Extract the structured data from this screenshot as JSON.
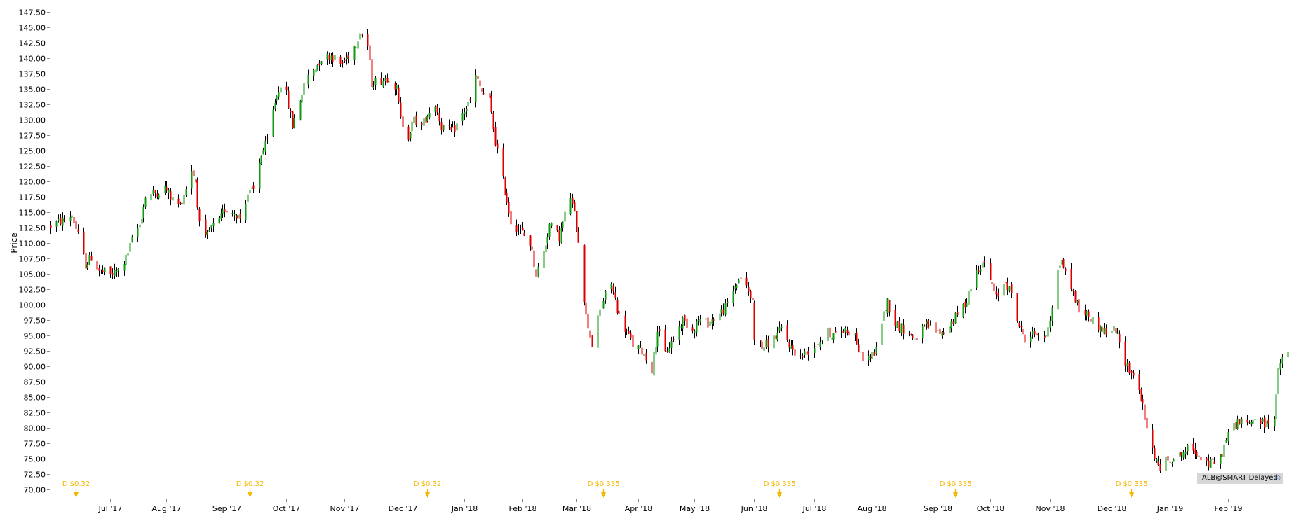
{
  "chart_data": {
    "type": "candlestick",
    "ylabel": "Price",
    "ylim": [
      68.5,
      149
    ],
    "yticks": [
      70,
      72.5,
      75,
      77.5,
      80,
      82.5,
      85,
      87.5,
      90,
      92.5,
      95,
      97.5,
      100,
      102.5,
      105,
      107.5,
      110,
      112.5,
      115,
      117.5,
      120,
      122.5,
      125,
      127.5,
      130,
      132.5,
      135,
      137.5,
      140,
      142.5,
      145,
      147.5
    ],
    "xlim": [
      "2017-06-02",
      "2019-03-04"
    ],
    "xticks": [
      {
        "date": "2017-07-03",
        "label": "Jul '17"
      },
      {
        "date": "2017-08-01",
        "label": "Aug '17"
      },
      {
        "date": "2017-09-01",
        "label": "Sep '17"
      },
      {
        "date": "2017-10-02",
        "label": "Oct '17"
      },
      {
        "date": "2017-11-01",
        "label": "Nov '17"
      },
      {
        "date": "2017-12-01",
        "label": "Dec '17"
      },
      {
        "date": "2018-01-02",
        "label": "Jan '18"
      },
      {
        "date": "2018-02-01",
        "label": "Feb '18"
      },
      {
        "date": "2018-03-01",
        "label": "Mar '18"
      },
      {
        "date": "2018-04-02",
        "label": "Apr '18"
      },
      {
        "date": "2018-05-01",
        "label": "May '18"
      },
      {
        "date": "2018-06-01",
        "label": "Jun '18"
      },
      {
        "date": "2018-07-02",
        "label": "Jul '18"
      },
      {
        "date": "2018-08-01",
        "label": "Aug '18"
      },
      {
        "date": "2018-09-04",
        "label": "Sep '18"
      },
      {
        "date": "2018-10-01",
        "label": "Oct '18"
      },
      {
        "date": "2018-11-01",
        "label": "Nov '18"
      },
      {
        "date": "2018-12-03",
        "label": "Dec '18"
      },
      {
        "date": "2019-01-02",
        "label": "Jan '19"
      },
      {
        "date": "2019-02-01",
        "label": "Feb '19"
      }
    ],
    "dividends": [
      {
        "date": "2017-06-15",
        "label": "D $0.32"
      },
      {
        "date": "2017-09-13",
        "label": "D $0.32"
      },
      {
        "date": "2017-12-14",
        "label": "D $0.32"
      },
      {
        "date": "2018-03-15",
        "label": "D $0.335"
      },
      {
        "date": "2018-06-14",
        "label": "D $0.335"
      },
      {
        "date": "2018-09-13",
        "label": "D $0.335"
      },
      {
        "date": "2018-12-13",
        "label": "D $0.335"
      }
    ],
    "path": [
      [
        "2017-06-02",
        112.8
      ],
      [
        "2017-06-09",
        113.8
      ],
      [
        "2017-06-13",
        114.6
      ],
      [
        "2017-06-16",
        111.2
      ],
      [
        "2017-06-20",
        106.5
      ],
      [
        "2017-06-23",
        107.8
      ],
      [
        "2017-06-27",
        105.5
      ],
      [
        "2017-07-03",
        104.8
      ],
      [
        "2017-07-07",
        105.5
      ],
      [
        "2017-07-11",
        107.5
      ],
      [
        "2017-07-14",
        110.5
      ],
      [
        "2017-07-18",
        113.0
      ],
      [
        "2017-07-21",
        117.5
      ],
      [
        "2017-07-25",
        118.0
      ],
      [
        "2017-07-31",
        119.0
      ],
      [
        "2017-08-04",
        117.0
      ],
      [
        "2017-08-08",
        116.0
      ],
      [
        "2017-08-11",
        119.0
      ],
      [
        "2017-08-14",
        122.0
      ],
      [
        "2017-08-16",
        120.0
      ],
      [
        "2017-08-18",
        113.0
      ],
      [
        "2017-08-21",
        110.5
      ],
      [
        "2017-08-24",
        112.5
      ],
      [
        "2017-08-28",
        113.5
      ],
      [
        "2017-08-31",
        115.5
      ],
      [
        "2017-09-05",
        115.0
      ],
      [
        "2017-09-08",
        114.0
      ],
      [
        "2017-09-12",
        118.0
      ],
      [
        "2017-09-15",
        118.5
      ],
      [
        "2017-09-19",
        124.5
      ],
      [
        "2017-09-22",
        126.5
      ],
      [
        "2017-09-26",
        133.0
      ],
      [
        "2017-09-29",
        136.0
      ],
      [
        "2017-10-02",
        134.0
      ],
      [
        "2017-10-05",
        129.0
      ],
      [
        "2017-10-09",
        133.5
      ],
      [
        "2017-10-13",
        137.0
      ],
      [
        "2017-10-17",
        138.5
      ],
      [
        "2017-10-20",
        140.0
      ],
      [
        "2017-10-25",
        140.5
      ],
      [
        "2017-10-30",
        139.0
      ],
      [
        "2017-11-02",
        140.0
      ],
      [
        "2017-11-07",
        142.5
      ],
      [
        "2017-11-09",
        144.5
      ],
      [
        "2017-11-13",
        142.0
      ],
      [
        "2017-11-15",
        136.0
      ],
      [
        "2017-11-20",
        136.5
      ],
      [
        "2017-11-24",
        137.0
      ],
      [
        "2017-11-28",
        135.0
      ],
      [
        "2017-11-30",
        130.0
      ],
      [
        "2017-12-04",
        127.5
      ],
      [
        "2017-12-07",
        130.0
      ],
      [
        "2017-12-11",
        129.0
      ],
      [
        "2017-12-14",
        131.0
      ],
      [
        "2017-12-18",
        132.5
      ],
      [
        "2017-12-21",
        129.0
      ],
      [
        "2017-12-27",
        128.0
      ],
      [
        "2018-01-02",
        131.5
      ],
      [
        "2018-01-05",
        133.0
      ],
      [
        "2018-01-08",
        137.0
      ],
      [
        "2018-01-11",
        134.5
      ],
      [
        "2018-01-15",
        133.0
      ],
      [
        "2018-01-18",
        126.5
      ],
      [
        "2018-01-23",
        118.5
      ],
      [
        "2018-01-26",
        113.5
      ],
      [
        "2018-01-31",
        112.0
      ],
      [
        "2018-02-05",
        110.0
      ],
      [
        "2018-02-08",
        105.0
      ],
      [
        "2018-02-12",
        108.5
      ],
      [
        "2018-02-15",
        113.0
      ],
      [
        "2018-02-20",
        111.0
      ],
      [
        "2018-02-23",
        114.5
      ],
      [
        "2018-02-26",
        117.5
      ],
      [
        "2018-02-28",
        114.5
      ],
      [
        "2018-03-02",
        110.5
      ],
      [
        "2018-03-06",
        98.0
      ],
      [
        "2018-03-09",
        93.5
      ],
      [
        "2018-03-13",
        99.0
      ],
      [
        "2018-03-16",
        101.5
      ],
      [
        "2018-03-19",
        103.5
      ],
      [
        "2018-03-23",
        98.0
      ],
      [
        "2018-03-27",
        95.5
      ],
      [
        "2018-03-30",
        93.5
      ],
      [
        "2018-04-04",
        92.5
      ],
      [
        "2018-04-09",
        89.5
      ],
      [
        "2018-04-12",
        96.0
      ],
      [
        "2018-04-16",
        92.0
      ],
      [
        "2018-04-20",
        94.5
      ],
      [
        "2018-04-25",
        97.5
      ],
      [
        "2018-04-30",
        96.0
      ],
      [
        "2018-05-03",
        97.5
      ],
      [
        "2018-05-08",
        97.0
      ],
      [
        "2018-05-14",
        98.5
      ],
      [
        "2018-05-18",
        100.0
      ],
      [
        "2018-05-22",
        103.0
      ],
      [
        "2018-05-25",
        104.5
      ],
      [
        "2018-05-29",
        102.0
      ],
      [
        "2018-05-31",
        100.5
      ],
      [
        "2018-06-01",
        95.0
      ],
      [
        "2018-06-05",
        93.0
      ],
      [
        "2018-06-11",
        94.5
      ],
      [
        "2018-06-15",
        96.0
      ],
      [
        "2018-06-20",
        93.0
      ],
      [
        "2018-06-25",
        91.5
      ],
      [
        "2018-06-29",
        92.5
      ],
      [
        "2018-07-03",
        93.5
      ],
      [
        "2018-07-09",
        95.5
      ],
      [
        "2018-07-13",
        95.0
      ],
      [
        "2018-07-18",
        96.0
      ],
      [
        "2018-07-23",
        95.0
      ],
      [
        "2018-07-26",
        91.5
      ],
      [
        "2018-07-31",
        91.5
      ],
      [
        "2018-08-03",
        92.5
      ],
      [
        "2018-08-06",
        97.5
      ],
      [
        "2018-08-09",
        100.5
      ],
      [
        "2018-08-13",
        97.0
      ],
      [
        "2018-08-17",
        96.0
      ],
      [
        "2018-08-23",
        94.5
      ],
      [
        "2018-08-29",
        96.5
      ],
      [
        "2018-09-04",
        95.5
      ],
      [
        "2018-09-07",
        95.5
      ],
      [
        "2018-09-12",
        97.5
      ],
      [
        "2018-09-18",
        100.0
      ],
      [
        "2018-09-21",
        103.0
      ],
      [
        "2018-09-25",
        106.0
      ],
      [
        "2018-09-27",
        107.0
      ],
      [
        "2018-10-01",
        104.0
      ],
      [
        "2018-10-04",
        101.0
      ],
      [
        "2018-10-09",
        104.0
      ],
      [
        "2018-10-12",
        101.5
      ],
      [
        "2018-10-16",
        96.5
      ],
      [
        "2018-10-19",
        94.5
      ],
      [
        "2018-10-25",
        95.5
      ],
      [
        "2018-10-29",
        94.0
      ],
      [
        "2018-11-01",
        98.0
      ],
      [
        "2018-11-05",
        105.5
      ],
      [
        "2018-11-07",
        107.5
      ],
      [
        "2018-11-09",
        105.0
      ],
      [
        "2018-11-13",
        102.0
      ],
      [
        "2018-11-16",
        99.0
      ],
      [
        "2018-11-20",
        98.5
      ],
      [
        "2018-11-26",
        96.5
      ],
      [
        "2018-11-30",
        95.5
      ],
      [
        "2018-12-05",
        96.0
      ],
      [
        "2018-12-07",
        93.5
      ],
      [
        "2018-12-11",
        90.0
      ],
      [
        "2018-12-14",
        88.5
      ],
      [
        "2018-12-18",
        85.0
      ],
      [
        "2018-12-21",
        79.5
      ],
      [
        "2018-12-24",
        76.5
      ],
      [
        "2018-12-27",
        73.5
      ],
      [
        "2019-01-02",
        75.0
      ],
      [
        "2019-01-07",
        75.5
      ],
      [
        "2019-01-11",
        76.5
      ],
      [
        "2019-01-16",
        76.0
      ],
      [
        "2019-01-22",
        74.0
      ],
      [
        "2019-01-28",
        75.0
      ],
      [
        "2019-02-01",
        79.0
      ],
      [
        "2019-02-06",
        81.0
      ],
      [
        "2019-02-11",
        80.5
      ],
      [
        "2019-02-15",
        81.5
      ],
      [
        "2019-02-20",
        80.5
      ],
      [
        "2019-02-25",
        82.0
      ],
      [
        "2019-02-27",
        89.0
      ],
      [
        "2019-03-01",
        91.5
      ],
      [
        "2019-03-04",
        92.0
      ]
    ]
  },
  "watermark": {
    "text": "ALB@SMART Delayed"
  },
  "colors": {
    "up": "#119911",
    "down": "#dd0000",
    "wick": "#000000",
    "dividend": "#f5b800",
    "axis": "#888888"
  }
}
